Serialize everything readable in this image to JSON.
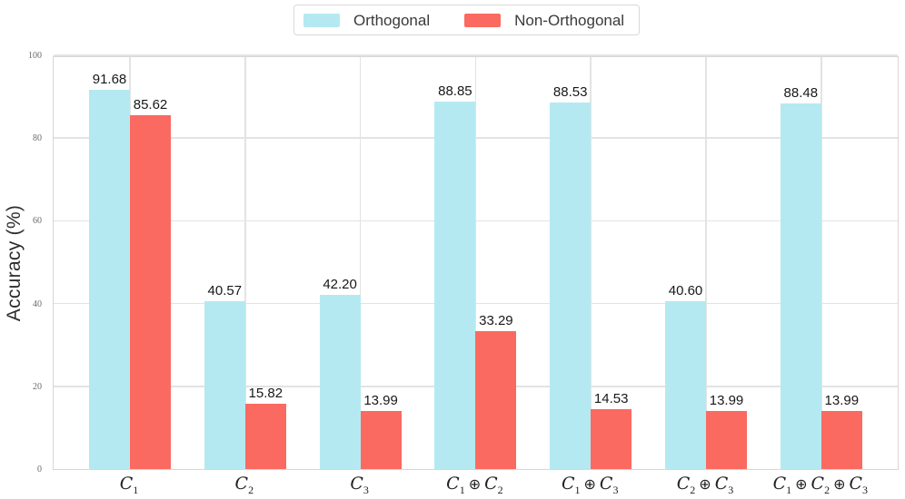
{
  "legend": {
    "items": [
      {
        "label": "Orthogonal",
        "color": "#B5E9F1"
      },
      {
        "label": "Non-Orthogonal",
        "color": "#FB6A60"
      }
    ]
  },
  "chart_data": {
    "type": "bar",
    "title": "",
    "xlabel": "",
    "ylabel": "Accuracy (%)",
    "ylim": [
      0,
      100
    ],
    "yticks": [
      0,
      20,
      40,
      60,
      80,
      100
    ],
    "grid": "both",
    "legend_position": "top-center-outside",
    "categories": [
      "C_1",
      "C_2",
      "C_3",
      "C_1 ⊕ C_2",
      "C_1 ⊕ C_3",
      "C_2 ⊕ C_3",
      "C_1 ⊕ C_2 ⊕ C_3"
    ],
    "series": [
      {
        "name": "Orthogonal",
        "color": "#B5E9F1",
        "values": [
          91.68,
          40.57,
          42.2,
          88.85,
          88.53,
          40.6,
          88.48
        ]
      },
      {
        "name": "Non-Orthogonal",
        "color": "#FB6A60",
        "values": [
          85.62,
          15.82,
          13.99,
          33.29,
          14.53,
          13.99,
          13.99
        ]
      }
    ],
    "value_label_decimals": 2
  }
}
